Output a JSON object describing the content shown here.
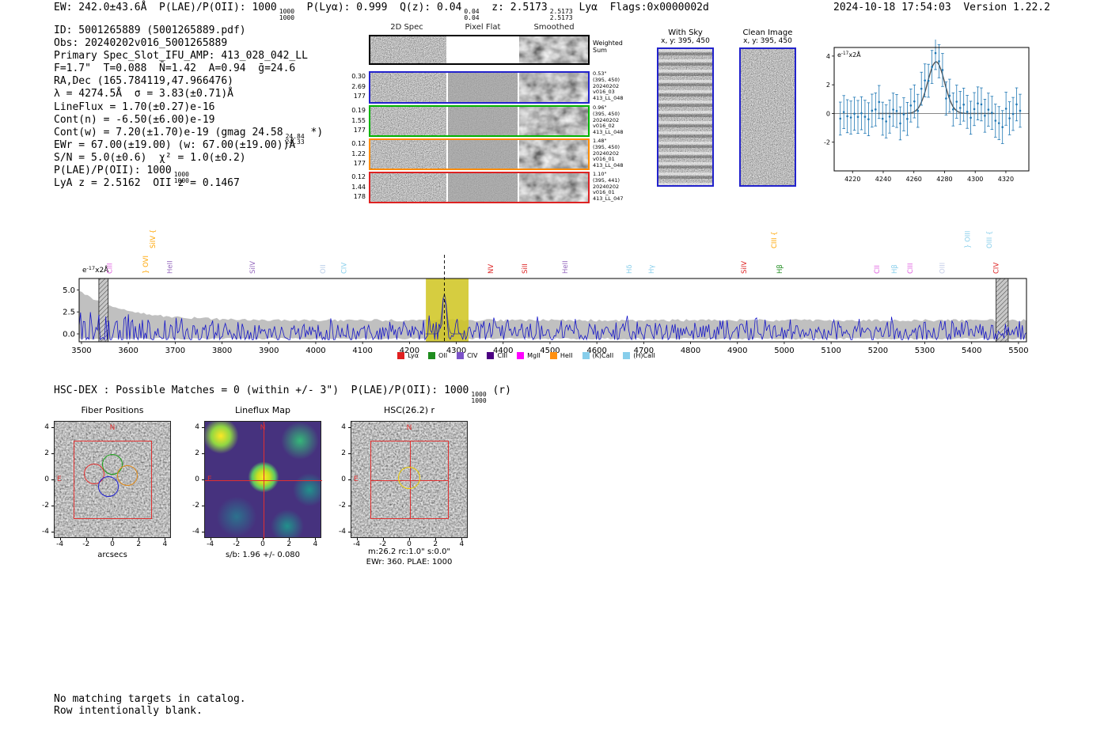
{
  "header": {
    "line": [
      {
        "t": "EW: 242.0±43.6Å  P(LAE)/P(OII): 1000"
      },
      {
        "f": [
          "1000",
          "1000"
        ]
      },
      {
        "t": "  P(Lyα): 0.999  Q(z): 0.04"
      },
      {
        "f": [
          "0.04",
          "0.04"
        ]
      },
      {
        "t": "  z: 2.5173"
      },
      {
        "f": [
          "2.5173",
          "2.5173"
        ]
      },
      {
        "t": " Lyα  Flags:0x0000002d"
      }
    ],
    "right": "2024-10-18 17:54:03  Version 1.22.2"
  },
  "info": {
    "lines": [
      [
        {
          "t": "ID: 5001265889 (5001265889.pdf)"
        }
      ],
      [
        {
          "t": "Obs: 20240202v016_5001265889"
        }
      ],
      [
        {
          "t": "Primary Spec_Slot_IFU_AMP: 413_028_042_LL"
        }
      ],
      [
        {
          "t": "F=1.7\"  T=0.088  N̄=1.42  A=0.94  ḡ=24.6"
        }
      ],
      [
        {
          "t": "RA,Dec (165.784119,47.966476)"
        }
      ],
      [
        {
          "t": "λ = 4274.5Å  σ = 3.83(±0.71)Å"
        }
      ],
      [
        {
          "t": "LineFlux = 1.70(±0.27)e-16"
        }
      ],
      [
        {
          "t": "Cont(n) = -6.50(±6.00)e-19"
        }
      ],
      [
        {
          "t": "Cont(w) = 7.20(±1.70)e-19 (gmag 24.58"
        },
        {
          "f": [
            "24.84",
            "24.33"
          ]
        },
        {
          "t": " *)"
        }
      ],
      [
        {
          "t": "EWr = 67.00(±19.00) (w: 67.00(±19.00))Å"
        }
      ],
      [
        {
          "t": "S/N = 5.0(±0.6)  χ² = 1.0(±0.2)"
        }
      ],
      [
        {
          "t": "P(LAE)/P(OII): 1000"
        },
        {
          "f": [
            "1000",
            "1000"
          ]
        }
      ],
      [
        {
          "t": "LyA z = 2.5162  OII z = 0.1467"
        }
      ]
    ]
  },
  "cutouts": {
    "col_titles": [
      "2D Spec",
      "Pixel Flat",
      "Smoothed"
    ],
    "weighted_sum": [
      "Weighted",
      "Sum"
    ],
    "rows": [
      {
        "border": "#000000",
        "left": [],
        "right": []
      },
      {
        "border": "#2222cc",
        "left": [
          "0.30",
          "2.69",
          "177"
        ],
        "right": [
          "0.53\"",
          "(395, 450)",
          "20240202",
          "v016_03",
          "413_LL_048"
        ]
      },
      {
        "border": "#00b400",
        "left": [
          "0.19",
          "1.55",
          "177"
        ],
        "right": [
          "0.96\"",
          "(395, 450)",
          "20240202",
          "v016_02",
          "413_LL_048"
        ]
      },
      {
        "border": "#ff8c00",
        "left": [
          "0.12",
          "1.22",
          "177"
        ],
        "right": [
          "1.48\"",
          "(395, 450)",
          "20240202",
          "v016_01",
          "413_LL_048"
        ]
      },
      {
        "border": "#dd2222",
        "left": [
          "0.12",
          "1.44",
          "178"
        ],
        "right": [
          "1.10\"",
          "(395, 441)",
          "20240202",
          "v016_01",
          "413_LL_047"
        ]
      }
    ]
  },
  "sky_panels": {
    "with_sky": {
      "title": "With Sky",
      "coords": "x, y: 395, 450"
    },
    "clean": {
      "title": "Clean Image",
      "coords": "x, y: 395, 450"
    }
  },
  "hsc_line": [
    {
      "t": "HSC-DEX : Possible Matches = 0 (within +/- 3\")  P(LAE)/P(OII): 1000"
    },
    {
      "f": [
        "1000",
        "1000"
      ]
    },
    {
      "t": " (r)"
    }
  ],
  "panels": {
    "ticks": [
      -4,
      -2,
      0,
      2,
      4
    ],
    "compass": {
      "n": "N",
      "e": "E"
    },
    "fiber": {
      "title": "Fiber Positions",
      "xlabel": "arcsecs"
    },
    "lineflux": {
      "title": "Lineflux Map",
      "xlabel": "s/b: 1.96 +/- 0.080"
    },
    "hsc": {
      "title": "HSC(26.2) r",
      "xlabel_line1": "m:26.2 rc:1.0\"  s:0.0\"",
      "xlabel_line2": "EWr: 360. PLAE: 1000"
    }
  },
  "footer": {
    "lines": [
      "No matching targets in catalog.",
      "Row intentionally blank."
    ]
  },
  "chart_data": [
    {
      "name": "emission_line_fit_inset",
      "type": "scatter",
      "units_label": {
        "prefix": "e",
        "sup": "-17",
        "suffix": "x2Å"
      },
      "x_ticks": [
        4220,
        4240,
        4260,
        4280,
        4300,
        4320
      ],
      "y_ticks": [
        -2,
        0,
        2,
        4
      ],
      "x_range": [
        4208,
        4335
      ],
      "y_range": [
        -4.0,
        4.6
      ],
      "fit": {
        "center": 4274.5,
        "sigma": 5.5,
        "amplitude": 3.6
      },
      "points": {
        "start": 4212,
        "step": 2.3,
        "n": 52,
        "noise": 0.8,
        "err": 1.15,
        "seed": 7
      },
      "point_color": "#1f77b4",
      "fit_color": "#555555"
    },
    {
      "name": "full_spectrum",
      "type": "line",
      "units_label": {
        "prefix": "e",
        "sup": "-17",
        "suffix": "x2Å"
      },
      "x_ticks": [
        3500,
        3600,
        3700,
        3800,
        3900,
        4000,
        4100,
        4200,
        4300,
        4400,
        4500,
        4600,
        4700,
        4800,
        4900,
        5000,
        5100,
        5200,
        5300,
        5400,
        5500
      ],
      "y_ticks": [
        0.0,
        2.5,
        5.0
      ],
      "x_range": [
        3495,
        5517
      ],
      "y_range": [
        -0.9,
        6.3
      ],
      "peak": {
        "center": 4274.5,
        "sigma": 4.0,
        "amplitude": 4.5
      },
      "noise": {
        "base": 0.8,
        "blue_boost": 2.3,
        "blue_scale": 95,
        "seed": 11,
        "step": 3
      },
      "highlight_band": [
        4235,
        4326
      ],
      "hatch_bands": [
        [
          3537,
          3557
        ],
        [
          5452,
          5478
        ]
      ],
      "dashed_line": 4274.5,
      "error_envelope": {
        "base": 1.4,
        "blue_boost": 3.4,
        "blue_scale": 95
      },
      "line_color": "#1515c8",
      "band_color": "#cfc41f",
      "legend": [
        {
          "label": "Lyα",
          "color": "#e02020"
        },
        {
          "label": "OII",
          "color": "#1e8c1e"
        },
        {
          "label": "CIV",
          "color": "#7b52c8"
        },
        {
          "label": "CIII",
          "color": "#4b0082"
        },
        {
          "label": "MgII",
          "color": "#ff00ff"
        },
        {
          "label": "HeII",
          "color": "#ff9010"
        },
        {
          "label": "(K)CaII",
          "color": "#87ceeb"
        },
        {
          "label": "(H)CaII",
          "color": "#87ceeb"
        }
      ],
      "line_labels": [
        {
          "wl": 3560,
          "text": "CIII",
          "color": "#e060e0",
          "tier": 0
        },
        {
          "wl": 3637,
          "text": "} OVI",
          "color": "#ffa500",
          "tier": 0
        },
        {
          "wl": 3652,
          "text": "SiIV {",
          "color": "#ffa500",
          "tier": 1
        },
        {
          "wl": 3688,
          "text": "HeII",
          "color": "#9467bd",
          "tier": 0
        },
        {
          "wl": 3865,
          "text": "SiIV",
          "color": "#9467bd",
          "tier": 0
        },
        {
          "wl": 4015,
          "text": "OII",
          "color": "#b9cde8",
          "tier": 0
        },
        {
          "wl": 4060,
          "text": "CIV",
          "color": "#87ceeb",
          "tier": 0
        },
        {
          "wl": 4373,
          "text": "NV",
          "color": "#dd2222",
          "tier": 0
        },
        {
          "wl": 4446,
          "text": "SiII",
          "color": "#dd2222",
          "tier": 0
        },
        {
          "wl": 4532,
          "text": "HeII",
          "color": "#9467bd",
          "tier": 0
        },
        {
          "wl": 4669,
          "text": "Hδ",
          "color": "#87ceeb",
          "tier": 0
        },
        {
          "wl": 4716,
          "text": "Hγ",
          "color": "#87ceeb",
          "tier": 0
        },
        {
          "wl": 4914,
          "text": "SiIV",
          "color": "#dd2222",
          "tier": 0
        },
        {
          "wl": 4978,
          "text": "CIII {",
          "color": "#ffa500",
          "tier": 1
        },
        {
          "wl": 4990,
          "text": "Hβ",
          "color": "#1e8c1e",
          "tier": 0
        },
        {
          "wl": 5198,
          "text": "CII",
          "color": "#e060e0",
          "tier": 0
        },
        {
          "wl": 5235,
          "text": "Hβ",
          "color": "#87ceeb",
          "tier": 0
        },
        {
          "wl": 5269,
          "text": "CIII",
          "color": "#e060e0",
          "tier": 0
        },
        {
          "wl": 5337,
          "text": "OIII",
          "color": "#c5cde8",
          "tier": 0
        },
        {
          "wl": 5391,
          "text": "} OIII",
          "color": "#87ceeb",
          "tier": 1
        },
        {
          "wl": 5438,
          "text": "OIII {",
          "color": "#87ceeb",
          "tier": 1
        },
        {
          "wl": 5452,
          "text": "CIV",
          "color": "#dd2222",
          "tier": 0
        }
      ]
    }
  ]
}
